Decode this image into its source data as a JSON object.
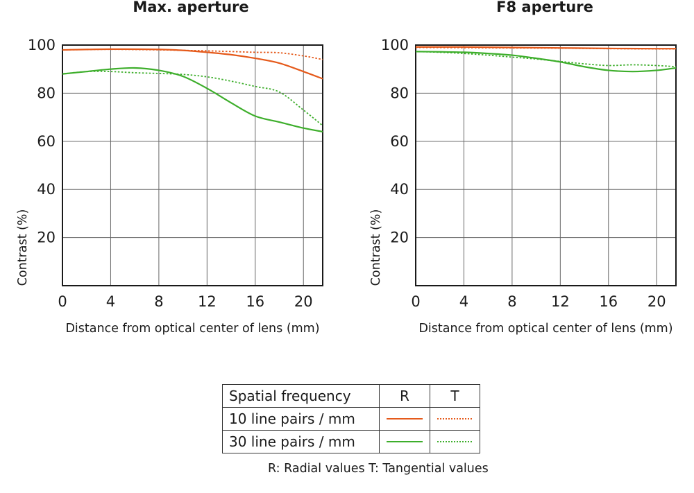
{
  "chart_data": [
    {
      "type": "line",
      "title": "Max. aperture",
      "xlabel": "Distance from optical center of lens (mm)",
      "ylabel": "Contrast (%)",
      "xlim": [
        0,
        21.6
      ],
      "ylim": [
        0,
        100
      ],
      "xticks": [
        "0",
        "4",
        "8",
        "12",
        "16",
        "20"
      ],
      "yticks": [
        "20",
        "40",
        "60",
        "80",
        "100"
      ],
      "series": [
        {
          "name": "10 line pairs / mm R",
          "color": "#e55a1b",
          "style": "solid",
          "x": [
            0,
            4,
            8,
            10,
            12,
            14,
            16,
            18,
            20,
            21.6
          ],
          "y": [
            98.0,
            98.3,
            98.2,
            97.8,
            97.0,
            96.0,
            94.5,
            92.5,
            89.0,
            86.0
          ]
        },
        {
          "name": "10 line pairs / mm T",
          "color": "#e55a1b",
          "style": "dotted",
          "x": [
            0,
            4,
            8,
            10,
            12,
            14,
            16,
            18,
            20,
            21.6
          ],
          "y": [
            98.0,
            98.2,
            98.0,
            97.8,
            97.6,
            97.3,
            97.0,
            96.8,
            95.5,
            94.0
          ]
        },
        {
          "name": "30 line pairs / mm R",
          "color": "#3dae2b",
          "style": "solid",
          "x": [
            0,
            2,
            4,
            6,
            8,
            10,
            12,
            14,
            16,
            18,
            20,
            21.6
          ],
          "y": [
            88.0,
            89.0,
            90.0,
            90.5,
            89.5,
            87.0,
            82.0,
            76.0,
            70.5,
            68.0,
            65.5,
            64.0
          ]
        },
        {
          "name": "30 line pairs / mm T",
          "color": "#3dae2b",
          "style": "dotted",
          "x": [
            0,
            2,
            4,
            6,
            8,
            10,
            12,
            14,
            16,
            18,
            20,
            21.6
          ],
          "y": [
            88.0,
            89.0,
            89.0,
            88.5,
            88.2,
            87.8,
            86.8,
            85.0,
            82.8,
            80.5,
            73.0,
            66.5
          ]
        }
      ]
    },
    {
      "type": "line",
      "title": "F8 aperture",
      "xlabel": "Distance from optical center of lens (mm)",
      "ylabel": "Contrast (%)",
      "xlim": [
        0,
        21.6
      ],
      "ylim": [
        0,
        100
      ],
      "xticks": [
        "0",
        "4",
        "8",
        "12",
        "16",
        "20"
      ],
      "yticks": [
        "20",
        "40",
        "60",
        "80",
        "100"
      ],
      "series": [
        {
          "name": "10 line pairs / mm R",
          "color": "#e55a1b",
          "style": "solid",
          "x": [
            0,
            4,
            8,
            12,
            16,
            20,
            21.6
          ],
          "y": [
            99.2,
            99.2,
            99.0,
            98.8,
            98.6,
            98.5,
            98.5
          ]
        },
        {
          "name": "10 line pairs / mm T",
          "color": "#e55a1b",
          "style": "dotted",
          "x": [
            0,
            4,
            8,
            12,
            16,
            20,
            21.6
          ],
          "y": [
            99.0,
            98.9,
            98.8,
            98.7,
            98.5,
            98.4,
            98.4
          ]
        },
        {
          "name": "30 line pairs / mm R",
          "color": "#3dae2b",
          "style": "solid",
          "x": [
            0,
            2,
            4,
            6,
            8,
            10,
            12,
            14,
            16,
            18,
            20,
            21.6
          ],
          "y": [
            97.3,
            97.2,
            97.0,
            96.5,
            95.8,
            94.5,
            93.0,
            91.0,
            89.5,
            89.0,
            89.5,
            90.5
          ]
        },
        {
          "name": "30 line pairs / mm T",
          "color": "#3dae2b",
          "style": "dotted",
          "x": [
            0,
            2,
            4,
            6,
            8,
            10,
            12,
            14,
            16,
            18,
            20,
            21.6
          ],
          "y": [
            97.3,
            97.0,
            96.5,
            95.8,
            95.0,
            94.2,
            93.2,
            92.2,
            91.5,
            91.8,
            91.5,
            91.0
          ]
        }
      ]
    }
  ],
  "legend": {
    "header": {
      "label": "Spatial frequency",
      "r": "R",
      "t": "T"
    },
    "rows": [
      {
        "label": "10 line pairs / mm",
        "color": "#e55a1b"
      },
      {
        "label": "30 line pairs / mm",
        "color": "#3dae2b"
      }
    ],
    "caption": "R: Radial values  T: Tangential values"
  }
}
